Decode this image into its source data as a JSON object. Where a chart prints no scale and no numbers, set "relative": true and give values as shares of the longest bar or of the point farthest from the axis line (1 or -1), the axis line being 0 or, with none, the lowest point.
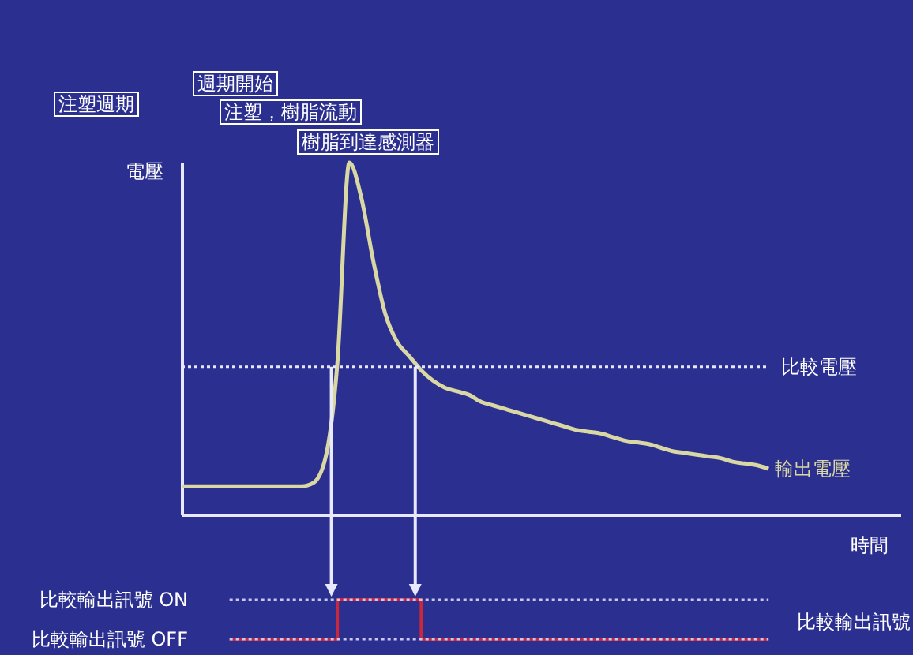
{
  "chart_data": [
    {
      "type": "line",
      "relative": true,
      "xlabel": "時間",
      "ylabel": "電壓",
      "annotations": [
        "注塑週期",
        "週期開始",
        "注塑，樹脂流動",
        "樹脂到達感測器"
      ],
      "categories": [
        null,
        null,
        null,
        null,
        null,
        null,
        null,
        null,
        null,
        null,
        null,
        null,
        null,
        null,
        null,
        null,
        null,
        null,
        null,
        null,
        null,
        null,
        null,
        null,
        null,
        null,
        null,
        null,
        null,
        null,
        null,
        null,
        null,
        null,
        null,
        null,
        null,
        null,
        null,
        null,
        null,
        null,
        null,
        null,
        null,
        null,
        null,
        null,
        null,
        null,
        null,
        null,
        null,
        null,
        null,
        null,
        null,
        null,
        null,
        null,
        null
      ],
      "series": [
        {
          "name": "輸出電壓",
          "color": "#d9d7a3",
          "values": [
            0.08,
            0.08,
            0.08,
            0.08,
            0.08,
            0.08,
            0.08,
            0.08,
            0.08,
            0.08,
            0.08,
            0.09,
            0.16,
            0.43,
            1,
            0.9,
            0.72,
            0.57,
            0.49,
            0.45,
            0.41,
            0.38,
            0.36,
            0.35,
            0.34,
            0.32,
            0.31,
            0.3,
            0.29,
            0.28,
            0.27,
            0.26,
            0.25,
            0.24,
            0.235,
            0.23,
            0.22,
            0.21,
            0.205,
            0.2,
            0.19,
            0.18,
            0.175,
            0.17,
            0.165,
            0.16,
            0.15,
            0.145,
            0.14,
            0.13,
            null,
            null,
            null,
            null,
            null,
            null,
            null,
            null,
            null,
            null,
            null
          ]
        }
      ],
      "ref_lines": [
        {
          "axis": "y",
          "value": 0.42,
          "label": "比較電壓",
          "color": "#e6e6ff",
          "line_style": "dotted"
        }
      ]
    },
    {
      "type": "step",
      "relative": true,
      "categories": [
        null,
        null,
        null,
        null,
        null,
        null,
        null,
        null,
        null,
        null,
        null,
        null,
        null,
        null,
        null,
        null,
        null,
        null,
        null,
        null,
        null,
        null,
        null,
        null,
        null,
        null,
        null,
        null,
        null,
        null,
        null,
        null,
        null,
        null,
        null,
        null,
        null,
        null,
        null,
        null,
        null,
        null,
        null,
        null,
        null,
        null
      ],
      "series": [
        {
          "name": "比較輸出訊號",
          "color": "#c8283c",
          "values": [
            0,
            0,
            0,
            0,
            0,
            0,
            0,
            0,
            0,
            1,
            1,
            1,
            1,
            1,
            1,
            1,
            0,
            0,
            0,
            0,
            0,
            0,
            0,
            0,
            0,
            0,
            0,
            0,
            0,
            0,
            0,
            0,
            0,
            0,
            0,
            0,
            0,
            0,
            0,
            0,
            0,
            0,
            0,
            0,
            0,
            0
          ]
        }
      ],
      "ref_lines": [
        {
          "axis": "y",
          "value": 1,
          "label": "比較輸出訊號 ON",
          "color": "#c8c8f0",
          "line_style": "dotted"
        },
        {
          "axis": "y",
          "value": 0,
          "label": "比較輸出訊號 OFF",
          "color": "#c8c8f0",
          "line_style": "dotted"
        }
      ]
    }
  ]
}
